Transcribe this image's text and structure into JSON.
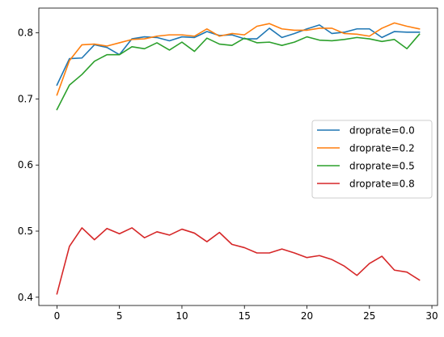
{
  "chart_data": {
    "type": "line",
    "title": "",
    "xlabel": "",
    "ylabel": "",
    "xlim": [
      -1.45,
      30.45
    ],
    "ylim": [
      0.3875,
      0.8375
    ],
    "xticks": [
      0,
      5,
      10,
      15,
      20,
      25,
      30
    ],
    "xtick_labels": [
      "0",
      "5",
      "10",
      "15",
      "20",
      "25",
      "30"
    ],
    "yticks": [
      0.4,
      0.5,
      0.6,
      0.7,
      0.8
    ],
    "ytick_labels": [
      "0.4",
      "0.5",
      "0.6",
      "0.7",
      "0.8"
    ],
    "grid": false,
    "legend_position": "center-right",
    "x": [
      0,
      1,
      2,
      3,
      4,
      5,
      6,
      7,
      8,
      9,
      10,
      11,
      12,
      13,
      14,
      15,
      16,
      17,
      18,
      19,
      20,
      21,
      22,
      23,
      24,
      25,
      26,
      27,
      28,
      29
    ],
    "series": [
      {
        "name": "droprate=0.0",
        "color": "#1f77b4",
        "values": [
          0.721,
          0.761,
          0.762,
          0.782,
          0.778,
          0.767,
          0.791,
          0.794,
          0.793,
          0.788,
          0.794,
          0.793,
          0.802,
          0.796,
          0.797,
          0.791,
          0.791,
          0.807,
          0.793,
          0.799,
          0.806,
          0.812,
          0.799,
          0.801,
          0.806,
          0.806,
          0.793,
          0.802,
          0.801,
          0.801
        ]
      },
      {
        "name": "droprate=0.2",
        "color": "#ff7f0e",
        "values": [
          0.706,
          0.758,
          0.782,
          0.783,
          0.78,
          0.785,
          0.79,
          0.791,
          0.795,
          0.797,
          0.797,
          0.795,
          0.806,
          0.795,
          0.799,
          0.797,
          0.81,
          0.814,
          0.806,
          0.804,
          0.804,
          0.807,
          0.807,
          0.799,
          0.798,
          0.795,
          0.807,
          0.815,
          0.81,
          0.806
        ]
      },
      {
        "name": "droprate=0.5",
        "color": "#2ca02c",
        "values": [
          0.684,
          0.721,
          0.737,
          0.757,
          0.767,
          0.767,
          0.779,
          0.776,
          0.785,
          0.774,
          0.786,
          0.772,
          0.792,
          0.783,
          0.781,
          0.792,
          0.785,
          0.786,
          0.781,
          0.786,
          0.794,
          0.789,
          0.788,
          0.79,
          0.793,
          0.791,
          0.787,
          0.79,
          0.776,
          0.798
        ]
      },
      {
        "name": "droprate=0.8",
        "color": "#d62728",
        "values": [
          0.405,
          0.477,
          0.505,
          0.487,
          0.504,
          0.496,
          0.505,
          0.49,
          0.499,
          0.494,
          0.503,
          0.497,
          0.484,
          0.498,
          0.48,
          0.475,
          0.467,
          0.467,
          0.473,
          0.467,
          0.46,
          0.463,
          0.457,
          0.447,
          0.433,
          0.451,
          0.462,
          0.441,
          0.438,
          0.426
        ]
      }
    ]
  }
}
